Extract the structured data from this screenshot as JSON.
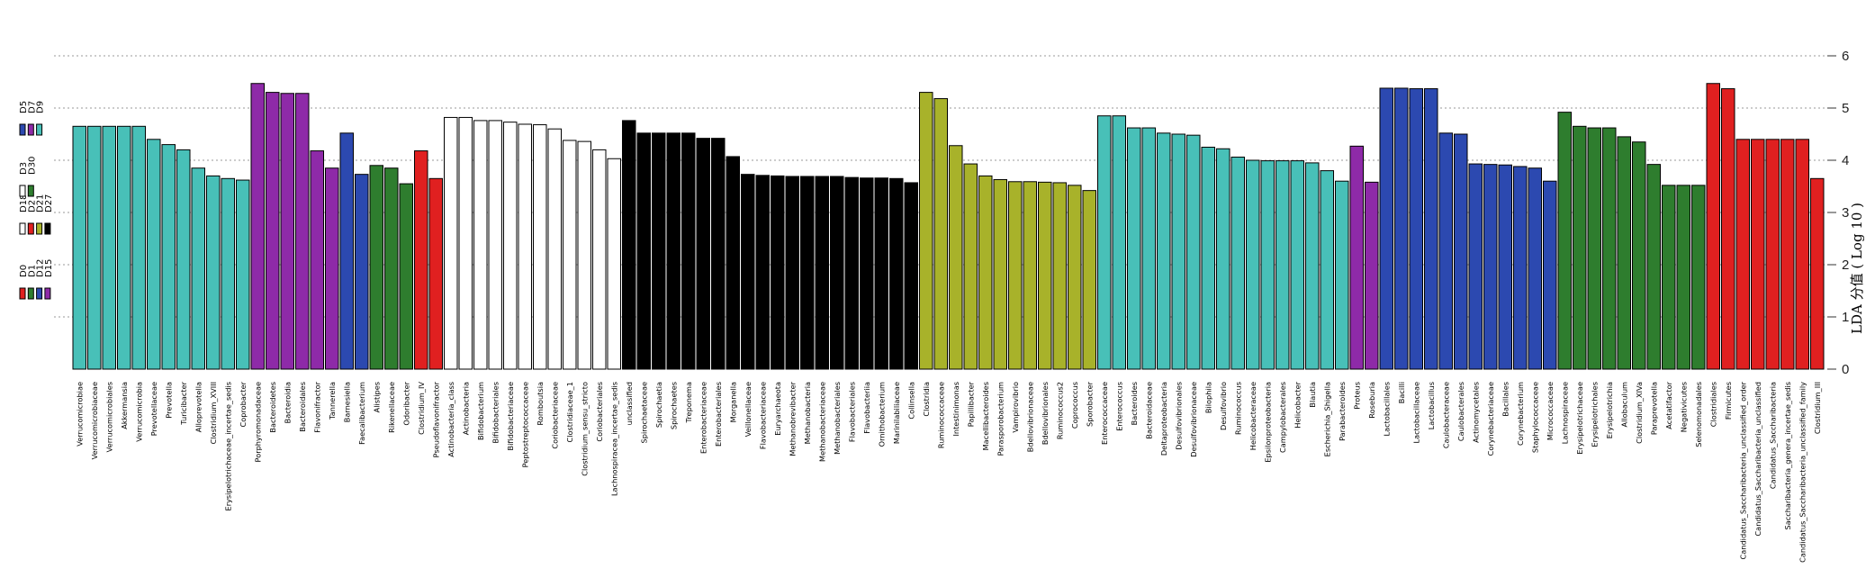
{
  "chart_data": {
    "type": "bar",
    "ylabel": "LDA 分值 ( Log 10 )",
    "ylim": [
      0,
      6
    ],
    "y_ticks": [
      "0",
      "1",
      "2",
      "3",
      "4",
      "5",
      "6"
    ],
    "y_axis_side": "right",
    "grid": true,
    "grid_style": "dotted",
    "legend_placement": "left",
    "groups": [
      {
        "name": "D0",
        "color": "#e02020"
      },
      {
        "name": "D1",
        "color": "#2e7d2e"
      },
      {
        "name": "D12",
        "color": "#2c49b0"
      },
      {
        "name": "D15",
        "color": "#8e2aa8"
      },
      {
        "name": "D18",
        "color": "#ffffff"
      },
      {
        "name": "D2",
        "color": "#e02020"
      },
      {
        "name": "D21",
        "color": "#a8b22a"
      },
      {
        "name": "D27",
        "color": "#000000"
      },
      {
        "name": "D3",
        "color": "#ffffff"
      },
      {
        "name": "D30",
        "color": "#2e7d2e"
      },
      {
        "name": "D5",
        "color": "#2c49b0"
      },
      {
        "name": "D7",
        "color": "#8e2aa8"
      },
      {
        "name": "D9",
        "color": "#48c0b8"
      }
    ],
    "categories": [
      "Verrucomicrobiae",
      "Verrucomicrobiaceae",
      "Verrucomicrobiales",
      "Akkermansia",
      "Verrucomicrobia",
      "Prevotellaceae",
      "Prevotella",
      "Turicibacter",
      "Alloprevotella",
      "Clostridium_XVIII",
      "Erysipelotrichaceae_incertae_sedis",
      "Coprobacter",
      "Porphyromonadaceae",
      "Bacteroidetes",
      "Bacteroidia",
      "Bacteroidales",
      "Flavonifractor",
      "Tannerella",
      "Barnesiella",
      "Faecalibacterium",
      "Alistipes",
      "Rikenellaceae",
      "Odoribacter",
      "Clostridium_IV",
      "Pseudoflavonifractor",
      "Actinobacteria_class",
      "Actinobacteria",
      "Bifidobacterium",
      "Bifidobacteriales",
      "Bifidobacteriaceae",
      "Peptostreptococcaceae",
      "Romboutsia",
      "Coriobacteriaceae",
      "Clostridiaceae_1",
      "Clostridium_sensu_stricto",
      "Coriobacteriales",
      "Lachnospiracea_incertae_sedis",
      "unclassified",
      "Spirochaetaceae",
      "Spirochaetia",
      "Spirochaetes",
      "Treponema",
      "Enterobacteriaceae",
      "Enterobacteriales",
      "Morganella",
      "Veillonellaceae",
      "Flavobacteriaceae",
      "Euryarchaeota",
      "Methanobrevibacter",
      "Methanobacteria",
      "Methanobacteriaceae",
      "Methanobacteriales",
      "Flavobacteriales",
      "Flavobacteriia",
      "Ornithobacterium",
      "Marinilabiliaceae",
      "Collinsella",
      "Clostridia",
      "Ruminococcaceae",
      "Intestinimonas",
      "Papillibacter",
      "Macellibacteroides",
      "Parasporobacterium",
      "Vampirovibrio",
      "Bdellovibrionaceae",
      "Bdellovibrionales",
      "Ruminococcus2",
      "Coprococcus",
      "Sporobacter",
      "Enterococcaceae",
      "Enterococcus",
      "Bacteroides",
      "Bacteroidaceae",
      "Deltaproteobacteria",
      "Desulfovibrionales",
      "Desulfovibrionaceae",
      "Bilophila",
      "Desulfovibrio",
      "Ruminococcus",
      "Helicobacteraceae",
      "Epsilonproteobacteria",
      "Campylobacterales",
      "Helicobacter",
      "Blautia",
      "Escherichia_Shigella",
      "Parabacteroides",
      "Proteus",
      "Roseburia",
      "Lactobacillales",
      "Bacilli",
      "Lactobacillaceae",
      "Lactobacillus",
      "Caulobacteraceae",
      "Caulobacterales",
      "Actinomycetales",
      "Corynebacteriaceae",
      "Bacillales",
      "Corynebacterium",
      "Staphylococcaceae",
      "Micrococcaceae",
      "Lachnospiraceae",
      "Erysipelotrichaceae",
      "Erysipelotrichales",
      "Erysipelotrichia",
      "Allobaculum",
      "Clostridium_XIVa",
      "Paraprevotella",
      "Acetatifactor",
      "Negativicutes",
      "Selenomonadales",
      "Clostridiales",
      "Firmicutes",
      "Candidatus_Saccharibacteria_unclassified_order",
      "Candidatus_Saccharibacteria_unclassified",
      "Candidatus_Saccharibacteria",
      "Saccharibacteria_genera_incertae_sedis",
      "Candidatus_Saccharibacteria_unclassified_family",
      "Clostridium_III"
    ],
    "values": [
      4.65,
      4.65,
      4.65,
      4.65,
      4.65,
      4.4,
      4.3,
      4.2,
      3.85,
      3.7,
      3.65,
      3.62,
      5.47,
      5.3,
      5.28,
      5.28,
      4.18,
      3.85,
      4.52,
      3.73,
      3.9,
      3.85,
      3.55,
      4.18,
      3.65,
      4.82,
      4.82,
      4.76,
      4.76,
      4.73,
      4.69,
      4.68,
      4.6,
      4.38,
      4.36,
      4.2,
      4.03,
      4.76,
      4.52,
      4.52,
      4.52,
      4.52,
      4.42,
      4.42,
      4.07,
      3.73,
      3.71,
      3.7,
      3.69,
      3.69,
      3.69,
      3.69,
      3.67,
      3.66,
      3.66,
      3.65,
      3.57,
      5.3,
      5.18,
      4.28,
      3.93,
      3.7,
      3.63,
      3.59,
      3.59,
      3.58,
      3.57,
      3.52,
      3.42,
      4.85,
      4.85,
      4.62,
      4.62,
      4.52,
      4.5,
      4.48,
      4.25,
      4.22,
      4.06,
      4.0,
      3.99,
      3.99,
      3.99,
      3.95,
      3.8,
      3.6,
      4.27,
      3.58,
      5.38,
      5.38,
      5.37,
      5.37,
      4.52,
      4.5,
      3.93,
      3.92,
      3.91,
      3.88,
      3.85,
      3.6,
      4.92,
      4.65,
      4.62,
      4.62,
      4.45,
      4.35,
      3.92,
      3.52,
      3.52,
      3.52,
      5.47,
      5.37,
      4.4,
      4.4,
      4.4,
      4.4,
      4.4,
      3.65
    ],
    "bar_groups": [
      "D9",
      "D9",
      "D9",
      "D9",
      "D9",
      "D9",
      "D9",
      "D9",
      "D9",
      "D9",
      "D9",
      "D9",
      "D7",
      "D7",
      "D7",
      "D7",
      "D7",
      "D7",
      "D5",
      "D5",
      "D30",
      "D30",
      "D30",
      "D3",
      "D3",
      "D27",
      "D27",
      "D27",
      "D27",
      "D27",
      "D27",
      "D27",
      "D27",
      "D27",
      "D27",
      "D27",
      "D27",
      "D21",
      "D21",
      "D21",
      "D21",
      "D21",
      "D21",
      "D21",
      "D21",
      "D21",
      "D21",
      "D21",
      "D21",
      "D21",
      "D21",
      "D21",
      "D21",
      "D21",
      "D21",
      "D21",
      "D21",
      "D2",
      "D2",
      "D2",
      "D2",
      "D2",
      "D2",
      "D2",
      "D2",
      "D2",
      "D2",
      "D2",
      "D2",
      "D18",
      "D18",
      "D18",
      "D18",
      "D18",
      "D18",
      "D18",
      "D18",
      "D18",
      "D18",
      "D18",
      "D18",
      "D18",
      "D18",
      "D18",
      "D18",
      "D18",
      "D15",
      "D15",
      "D12",
      "D12",
      "D12",
      "D12",
      "D12",
      "D12",
      "D12",
      "D12",
      "D12",
      "D12",
      "D12",
      "D12",
      "D1",
      "D1",
      "D1",
      "D1",
      "D1",
      "D1",
      "D1",
      "D1",
      "D1",
      "D1",
      "D0",
      "D0",
      "D0",
      "D0",
      "D0",
      "D0",
      "D0",
      "D0"
    ],
    "bar_colors": [
      "#48c0b8",
      "#48c0b8",
      "#48c0b8",
      "#48c0b8",
      "#48c0b8",
      "#48c0b8",
      "#48c0b8",
      "#48c0b8",
      "#48c0b8",
      "#48c0b8",
      "#48c0b8",
      "#48c0b8",
      "#8e2aa8",
      "#8e2aa8",
      "#8e2aa8",
      "#8e2aa8",
      "#8e2aa8",
      "#8e2aa8",
      "#2c49b0",
      "#2c49b0",
      "#2e7d2e",
      "#2e7d2e",
      "#2e7d2e",
      "#e02020",
      "#e02020",
      "#ffffff",
      "#ffffff",
      "#ffffff",
      "#ffffff",
      "#ffffff",
      "#ffffff",
      "#ffffff",
      "#ffffff",
      "#ffffff",
      "#ffffff",
      "#ffffff",
      "#ffffff",
      "#000000",
      "#000000",
      "#000000",
      "#000000",
      "#000000",
      "#000000",
      "#000000",
      "#000000",
      "#000000",
      "#000000",
      "#000000",
      "#000000",
      "#000000",
      "#000000",
      "#000000",
      "#000000",
      "#000000",
      "#000000",
      "#000000",
      "#000000",
      "#a8b22a",
      "#a8b22a",
      "#a8b22a",
      "#a8b22a",
      "#a8b22a",
      "#a8b22a",
      "#a8b22a",
      "#a8b22a",
      "#a8b22a",
      "#a8b22a",
      "#a8b22a",
      "#a8b22a",
      "#48c0b8",
      "#48c0b8",
      "#48c0b8",
      "#48c0b8",
      "#48c0b8",
      "#48c0b8",
      "#48c0b8",
      "#48c0b8",
      "#48c0b8",
      "#48c0b8",
      "#48c0b8",
      "#48c0b8",
      "#48c0b8",
      "#48c0b8",
      "#48c0b8",
      "#48c0b8",
      "#48c0b8",
      "#8e2aa8",
      "#8e2aa8",
      "#2c49b0",
      "#2c49b0",
      "#2c49b0",
      "#2c49b0",
      "#2c49b0",
      "#2c49b0",
      "#2c49b0",
      "#2c49b0",
      "#2c49b0",
      "#2c49b0",
      "#2c49b0",
      "#2c49b0",
      "#2e7d2e",
      "#2e7d2e",
      "#2e7d2e",
      "#2e7d2e",
      "#2e7d2e",
      "#2e7d2e",
      "#2e7d2e",
      "#2e7d2e",
      "#2e7d2e",
      "#2e7d2e",
      "#e02020",
      "#e02020",
      "#e02020",
      "#e02020",
      "#e02020",
      "#e02020",
      "#e02020",
      "#e02020"
    ]
  }
}
